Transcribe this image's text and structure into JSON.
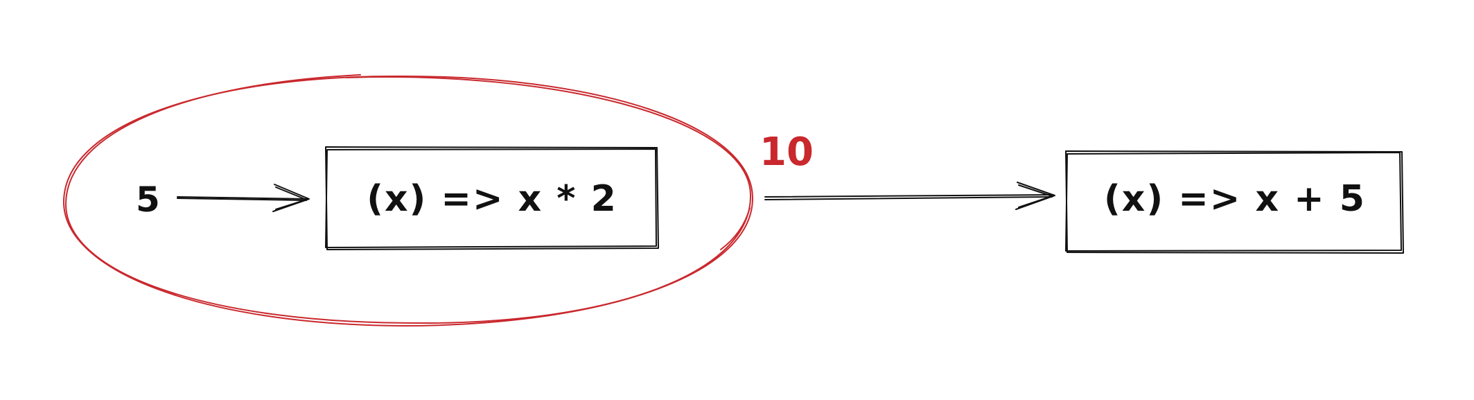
{
  "diagram": {
    "input_value": "5",
    "first_function": "(x) => x * 2",
    "intermediate_value": "10",
    "second_function": "(x) => x + 5"
  },
  "colors": {
    "ink": "#111111",
    "highlight": "#c9282d"
  }
}
